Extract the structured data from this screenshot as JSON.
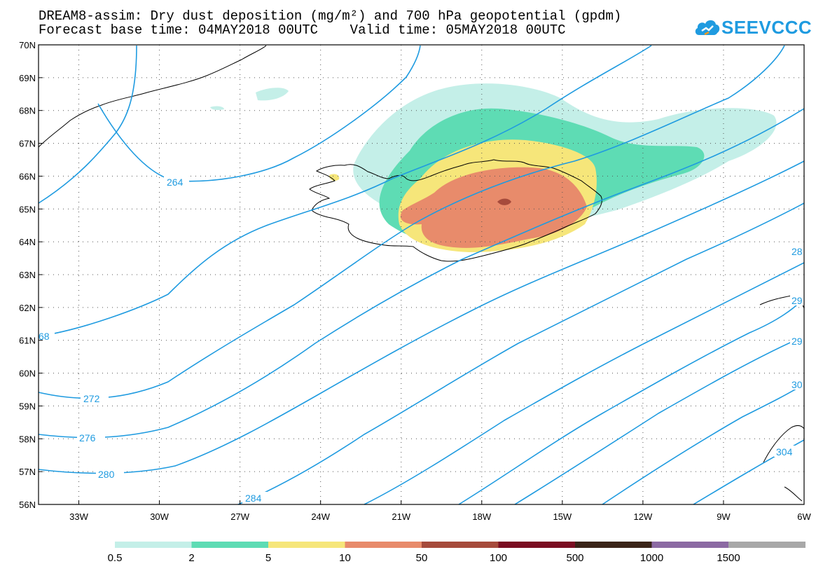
{
  "title": {
    "line1": "DREAM8-assim: Dry dust deposition (mg/m²) and 700 hPa geopotential (gpdm)",
    "line2": "Forecast base time: 04MAY2018 00UTC    Valid time: 05MAY2018 00UTC"
  },
  "logo": {
    "text": "SEEVCCC",
    "icon": "cloud-icon",
    "color": "#1f9be0"
  },
  "map": {
    "lat_labels": [
      "70N",
      "69N",
      "68N",
      "67N",
      "66N",
      "65N",
      "64N",
      "63N",
      "62N",
      "61N",
      "60N",
      "59N",
      "58N",
      "57N",
      "56N"
    ],
    "lon_labels": [
      "33W",
      "30W",
      "27W",
      "24W",
      "21W",
      "18W",
      "15W",
      "12W",
      "9W",
      "6W"
    ],
    "lat_range": [
      56,
      70
    ],
    "lon_range": [
      -34.5,
      -6
    ],
    "grid": true,
    "contour_color": "#1f9be0",
    "contour_labels": [
      "264",
      "68",
      "272",
      "276",
      "280",
      "284",
      "28",
      "29",
      "29",
      "30",
      "304"
    ]
  },
  "legend": {
    "labels": [
      "0.5",
      "2",
      "5",
      "10",
      "50",
      "100",
      "500",
      "1000",
      "1500"
    ],
    "colors": [
      "#c4efe8",
      "#5edcb4",
      "#f6e67a",
      "#e88b6b",
      "#a64b3c",
      "#7a0e22",
      "#3a2418",
      "#8c6aa3",
      "#a8a8a8"
    ]
  }
}
